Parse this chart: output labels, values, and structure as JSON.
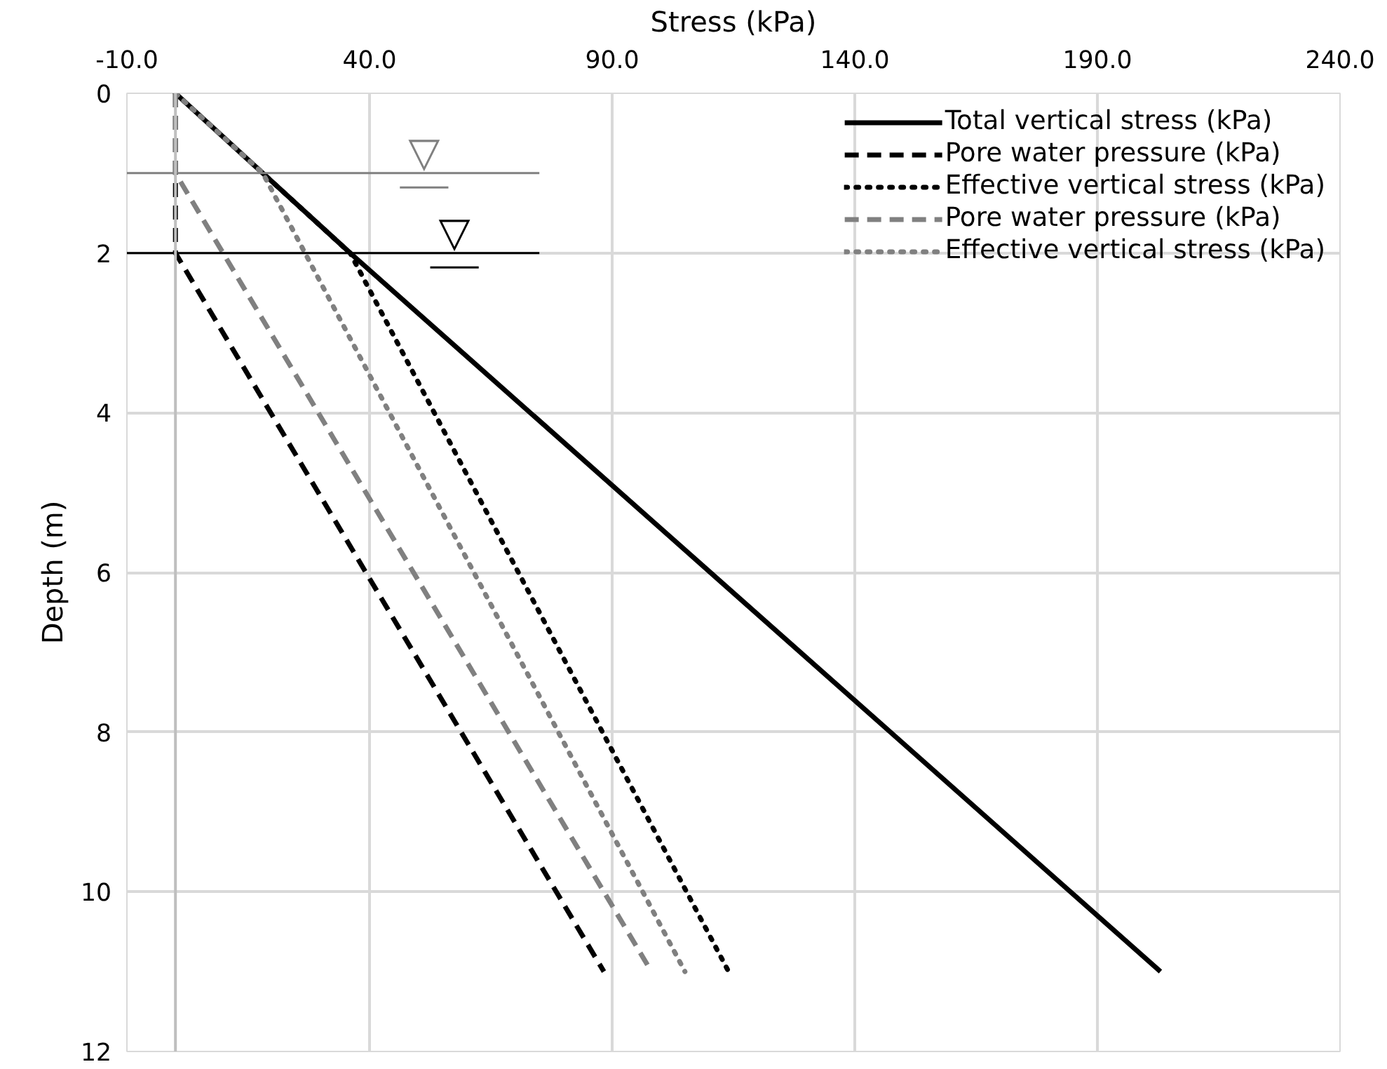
{
  "chart_data": {
    "type": "line",
    "xlabel": "Stress (kPa)",
    "ylabel": "Depth (m)",
    "xlim": [
      -10,
      240
    ],
    "xticks": [
      {
        "value": -10,
        "label": "-10.0"
      },
      {
        "value": 40,
        "label": "40.0"
      },
      {
        "value": 90,
        "label": "90.0"
      },
      {
        "value": 140,
        "label": "140.0"
      },
      {
        "value": 190,
        "label": "190.0"
      },
      {
        "value": 240,
        "label": "240.0"
      }
    ],
    "ylim": [
      12,
      0
    ],
    "yticks": [
      0,
      2,
      4,
      6,
      8,
      10,
      12
    ],
    "grid": true,
    "legend": "top right",
    "series": [
      {
        "name": "Total vertical stress (kPa)",
        "color": "#000000",
        "line_style": "solid",
        "x": [
          0,
          18,
          36,
          203
        ],
        "values": [
          0,
          1,
          2,
          11
        ]
      },
      {
        "name": "Pore water pressure (kPa)",
        "color": "#000000",
        "line_style": "dashed",
        "x": [
          0,
          0,
          88.3
        ],
        "values": [
          0,
          2,
          11
        ]
      },
      {
        "name": "Effective vertical stress (kPa)",
        "color": "#000000",
        "line_style": "dotted",
        "x": [
          0,
          36,
          114
        ],
        "values": [
          0,
          2,
          11
        ]
      },
      {
        "name": "Pore water pressure (kPa)",
        "color": "#808080",
        "line_style": "dashed",
        "x": [
          0,
          0,
          98.1
        ],
        "values": [
          0,
          1,
          11
        ]
      },
      {
        "name": "Effective vertical stress (kPa)",
        "color": "#808080",
        "line_style": "dotted",
        "x": [
          0,
          18,
          105
        ],
        "values": [
          0,
          1,
          11
        ]
      }
    ],
    "ref_lines": [
      {
        "axis": "x",
        "value": 0,
        "color": "#bfbfbf"
      },
      {
        "axis": "y",
        "value": 1,
        "label": "▽",
        "color": "#808080"
      },
      {
        "axis": "y",
        "value": 2,
        "label": "▽",
        "color": "#000000"
      }
    ]
  }
}
